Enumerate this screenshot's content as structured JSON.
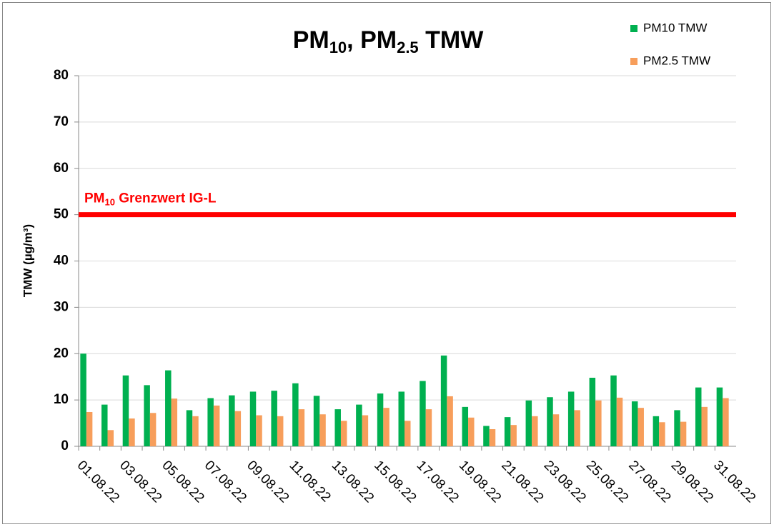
{
  "chart_data": {
    "type": "bar",
    "title": [
      {
        "text": "PM",
        "sub": false
      },
      {
        "text": "10",
        "sub": true
      },
      {
        "text": ", PM",
        "sub": false
      },
      {
        "text": "2.5",
        "sub": true
      },
      {
        "text": " TMW",
        "sub": false
      }
    ],
    "y_label": "TMW (µg/m³)",
    "categories": [
      "01.08.22",
      null,
      "03.08.22",
      null,
      "05.08.22",
      null,
      "07.08.22",
      null,
      "09.08.22",
      null,
      "11.08.22",
      null,
      "13.08.22",
      null,
      "15.08.22",
      null,
      "17.08.22",
      null,
      "19.08.22",
      null,
      "21.08.22",
      null,
      "23.08.22",
      null,
      "25.08.22",
      null,
      "27.08.22",
      null,
      "29.08.22",
      null,
      "31.08.22"
    ],
    "series": [
      {
        "name": "PM10 TMW",
        "color": "#00b050",
        "values": [
          20,
          9,
          15.3,
          13.2,
          16.4,
          7.8,
          10.4,
          11,
          11.8,
          12,
          13.6,
          10.9,
          8,
          9,
          11.4,
          11.8,
          14.1,
          19.6,
          8.5,
          4.4,
          6.3,
          9.9,
          10.6,
          11.8,
          14.8,
          15.3,
          9.7,
          6.5,
          7.8,
          12.7,
          12.7
        ]
      },
      {
        "name": "PM2.5 TMW",
        "color": "#f79e5b",
        "values": [
          7.4,
          3.5,
          6,
          7.2,
          10.3,
          6.5,
          8.8,
          7.6,
          6.7,
          6.5,
          8,
          6.9,
          5.5,
          6.7,
          8.3,
          5.5,
          8,
          10.8,
          6.2,
          3.7,
          4.6,
          6.5,
          6.9,
          7.8,
          9.9,
          10.5,
          8.3,
          5.2,
          5.3,
          8.5,
          10.4
        ]
      }
    ],
    "threshold": {
      "value": 50,
      "color": "#ff0000",
      "label": [
        {
          "text": "PM",
          "sub": false
        },
        {
          "text": "10",
          "sub": true
        },
        {
          "text": " Grenzwert IG-L",
          "sub": false
        }
      ]
    },
    "ylim": [
      0,
      80
    ],
    "yticks": [
      0,
      10,
      20,
      30,
      40,
      50,
      60,
      70,
      80
    ],
    "grid": true,
    "legend": "top-right"
  }
}
